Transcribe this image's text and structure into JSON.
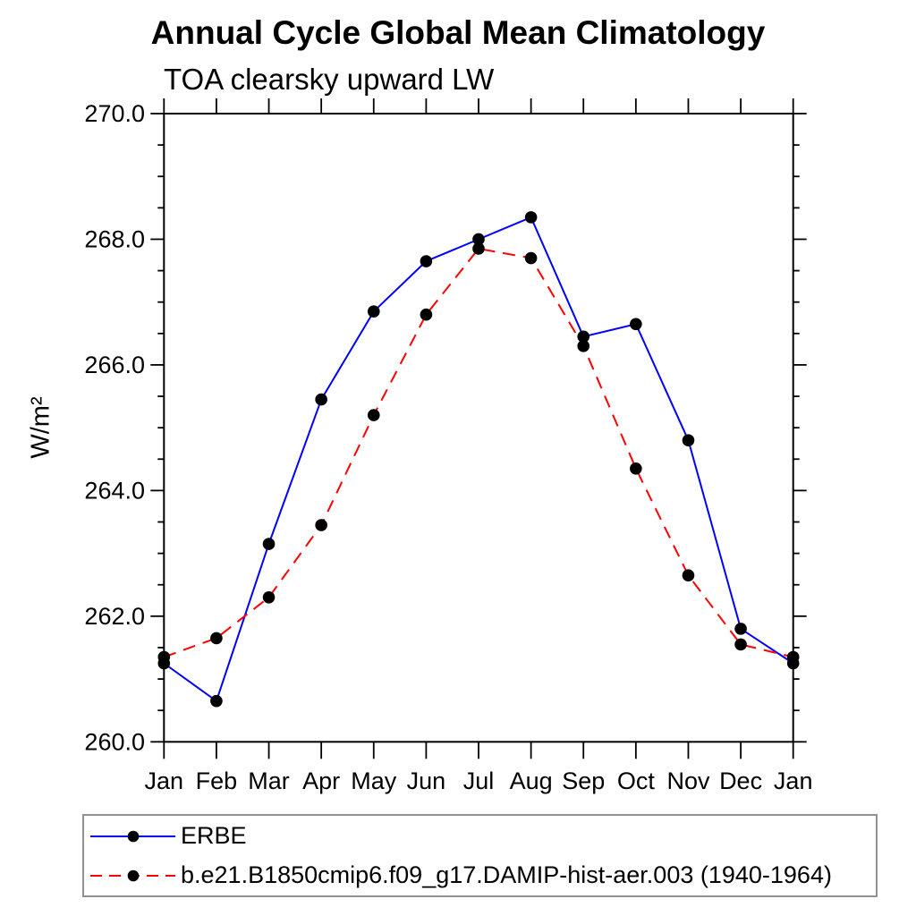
{
  "chart_data": {
    "type": "line",
    "title": "Annual Cycle Global Mean Climatology",
    "subtitle": "TOA clearsky upward LW",
    "xlabel": "",
    "ylabel": "W/m²",
    "x_categories": [
      "Jan",
      "Feb",
      "Mar",
      "Apr",
      "May",
      "Jun",
      "Jul",
      "Aug",
      "Sep",
      "Oct",
      "Nov",
      "Dec",
      "Jan"
    ],
    "ylim": [
      260.0,
      270.0
    ],
    "y_major_step": 2.0,
    "y_minor_step": 0.5,
    "y_tick_labels": [
      "260.0",
      "262.0",
      "264.0",
      "266.0",
      "268.0",
      "270.0"
    ],
    "grid": false,
    "legend_position": "bottom",
    "marker": "filled-circle",
    "marker_color": "#000000",
    "frame_color": "#000000",
    "series": [
      {
        "name": "ERBE",
        "color": "#0000ff",
        "style": "solid",
        "values": [
          261.25,
          260.65,
          263.15,
          265.45,
          266.85,
          267.65,
          268.0,
          268.35,
          266.45,
          266.65,
          264.8,
          261.8,
          261.25
        ]
      },
      {
        "name": "b.e21.B1850cmip6.f09_g17.DAMIP-hist-aer.003 (1940-1964)",
        "color": "#ff0000",
        "style": "dashed",
        "values": [
          261.35,
          261.65,
          262.3,
          263.45,
          265.2,
          266.8,
          267.85,
          267.7,
          266.3,
          264.35,
          262.65,
          261.55,
          261.35
        ]
      }
    ]
  }
}
